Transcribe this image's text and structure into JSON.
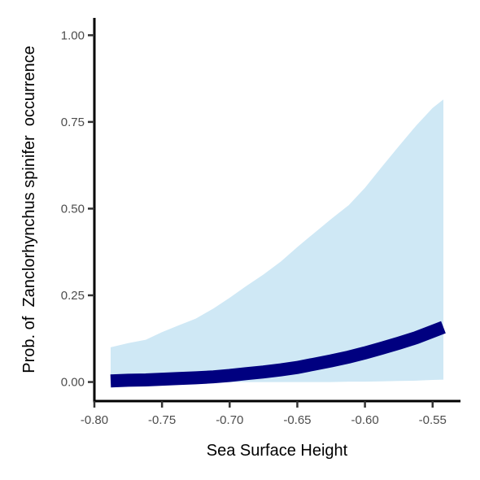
{
  "chart_data": {
    "type": "line",
    "title": "",
    "xlabel": "Sea Surface Height",
    "ylabel": "Prob. of  Zanclorhynchus spinifer  occurrence",
    "xlim": [
      -0.8,
      -0.53
    ],
    "ylim": [
      -0.055,
      1.05
    ],
    "x_ticks": [
      -0.8,
      -0.75,
      -0.7,
      -0.65,
      -0.6,
      -0.55
    ],
    "x_tick_labels": [
      "-0.80",
      "-0.75",
      "-0.70",
      "-0.65",
      "-0.60",
      "-0.55"
    ],
    "y_ticks": [
      0.0,
      0.25,
      0.5,
      0.75,
      1.0
    ],
    "y_tick_labels": [
      "0.00",
      "0.25",
      "0.50",
      "0.75",
      "1.00"
    ],
    "grid": false,
    "legend": "none",
    "colors": {
      "line": "#000080",
      "ribbon": "#cfe8f5",
      "axis": "#000000"
    },
    "series": [
      {
        "x": [
          -0.788,
          -0.775,
          -0.762,
          -0.75,
          -0.738,
          -0.725,
          -0.712,
          -0.7,
          -0.688,
          -0.675,
          -0.662,
          -0.65,
          -0.638,
          -0.625,
          -0.612,
          -0.6,
          -0.588,
          -0.575,
          -0.562,
          -0.55,
          -0.542
        ],
        "y": [
          0.003,
          0.005,
          0.006,
          0.008,
          0.01,
          0.012,
          0.015,
          0.019,
          0.024,
          0.029,
          0.035,
          0.042,
          0.051,
          0.061,
          0.072,
          0.084,
          0.097,
          0.112,
          0.128,
          0.146,
          0.158
        ],
        "lower": [
          0.0,
          0.0,
          0.0,
          0.0,
          0.0,
          0.0,
          0.0,
          0.0,
          0.0,
          0.0,
          0.0,
          0.0,
          0.0,
          0.0,
          0.001,
          0.001,
          0.002,
          0.003,
          0.004,
          0.006,
          0.007
        ],
        "upper": [
          0.1,
          0.112,
          0.122,
          0.144,
          0.163,
          0.183,
          0.212,
          0.243,
          0.276,
          0.31,
          0.348,
          0.389,
          0.428,
          0.47,
          0.51,
          0.56,
          0.618,
          0.68,
          0.74,
          0.79,
          0.815
        ]
      }
    ]
  }
}
